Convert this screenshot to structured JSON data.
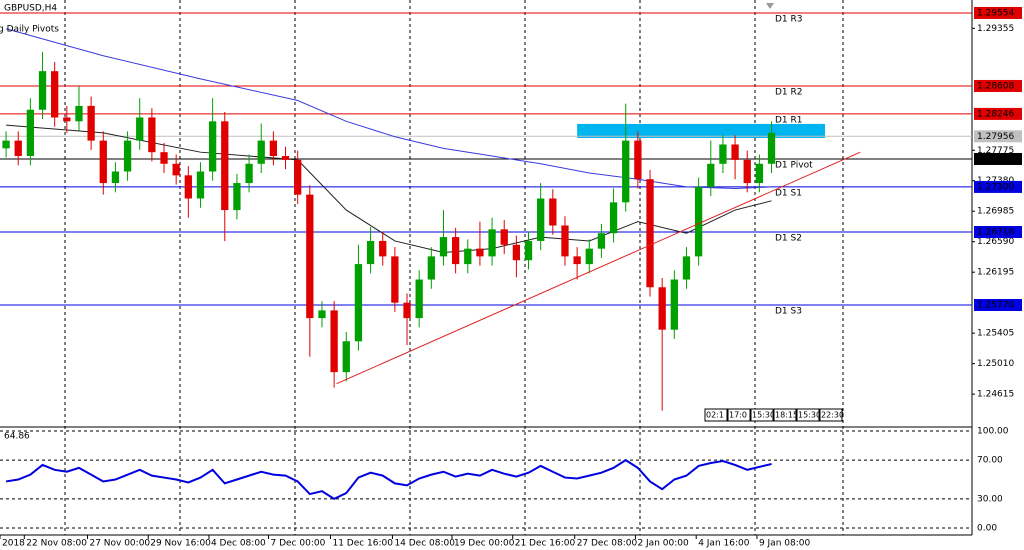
{
  "chart_data": {
    "type": "candlestick",
    "title": "GBPUSD,H4",
    "subtitle": "g Daily Pivots",
    "xlim": [
      -0.5,
      79.5
    ],
    "ylim": [
      1.24215,
      1.29722
    ],
    "up_color": "#00a000",
    "down_color": "#e00000",
    "open": [
      1.278,
      1.279,
      1.277,
      1.283,
      1.288,
      1.282,
      1.2815,
      1.2835,
      1.279,
      1.2735,
      1.275,
      1.279,
      1.282,
      1.2775,
      1.276,
      1.2745,
      1.2715,
      1.275,
      1.2815,
      1.27,
      1.2735,
      1.276,
      1.279,
      1.277,
      1.2765,
      1.272,
      1.256,
      1.257,
      1.249,
      1.253,
      1.263,
      1.266,
      1.264,
      1.258,
      1.256,
      1.261,
      1.264,
      1.2665,
      1.263,
      1.265,
      1.264,
      1.2675,
      1.2655,
      1.2635,
      1.266,
      1.2715,
      1.268,
      1.264,
      1.263,
      1.265,
      1.267,
      1.271,
      1.279,
      1.274,
      1.26,
      1.2545,
      1.261,
      1.264,
      1.273,
      1.276,
      1.2785,
      1.2765,
      1.2735,
      1.276
    ],
    "high": [
      1.2802,
      1.2802,
      1.2845,
      1.2905,
      1.2892,
      1.2835,
      1.286,
      1.2847,
      1.2802,
      1.2762,
      1.2802,
      1.2845,
      1.2832,
      1.2787,
      1.2772,
      1.2757,
      1.2762,
      1.2845,
      1.2827,
      1.2747,
      1.2772,
      1.2812,
      1.2802,
      1.2782,
      1.2777,
      1.2732,
      1.2582,
      1.2582,
      1.2542,
      1.2655,
      1.2678,
      1.2672,
      1.2652,
      1.2592,
      1.2622,
      1.2652,
      1.27,
      1.2677,
      1.2662,
      1.2685,
      1.269,
      1.2687,
      1.2667,
      1.2672,
      1.2735,
      1.2727,
      1.2692,
      1.2652,
      1.2662,
      1.2682,
      1.2728,
      1.2838,
      1.2802,
      1.2752,
      1.2612,
      1.2622,
      1.2652,
      1.2742,
      1.279,
      1.2797,
      1.2797,
      1.2777,
      1.2772,
      1.2815
    ],
    "low": [
      1.2768,
      1.2758,
      1.2758,
      1.2818,
      1.2808,
      1.28,
      1.2803,
      1.2778,
      1.272,
      1.2723,
      1.2738,
      1.2778,
      1.2763,
      1.2748,
      1.2733,
      1.269,
      1.2703,
      1.2738,
      1.266,
      1.2688,
      1.2723,
      1.2748,
      1.2758,
      1.2753,
      1.2708,
      1.251,
      1.2548,
      1.247,
      1.2478,
      1.2518,
      1.2618,
      1.2628,
      1.2568,
      1.2525,
      1.2548,
      1.2598,
      1.2628,
      1.2618,
      1.2618,
      1.2628,
      1.2628,
      1.2643,
      1.2613,
      1.2623,
      1.2648,
      1.2668,
      1.2628,
      1.261,
      1.2618,
      1.2638,
      1.2658,
      1.2698,
      1.2728,
      1.2588,
      1.244,
      1.2533,
      1.2598,
      1.2628,
      1.2718,
      1.2748,
      1.274,
      1.2723,
      1.2723,
      1.2748
    ],
    "close": [
      1.279,
      1.277,
      1.283,
      1.288,
      1.282,
      1.2815,
      1.2835,
      1.279,
      1.2735,
      1.275,
      1.279,
      1.282,
      1.2775,
      1.276,
      1.2745,
      1.2715,
      1.275,
      1.2815,
      1.27,
      1.2735,
      1.276,
      1.279,
      1.277,
      1.2765,
      1.272,
      1.256,
      1.257,
      1.249,
      1.253,
      1.263,
      1.266,
      1.264,
      1.258,
      1.256,
      1.261,
      1.264,
      1.2665,
      1.263,
      1.265,
      1.264,
      1.2675,
      1.2655,
      1.2635,
      1.266,
      1.2715,
      1.268,
      1.264,
      1.263,
      1.265,
      1.267,
      1.271,
      1.279,
      1.274,
      1.26,
      1.2545,
      1.261,
      1.264,
      1.273,
      1.276,
      1.2785,
      1.2765,
      1.2735,
      1.276,
      1.28
    ],
    "ma": [
      {
        "color": "#3a3ae0",
        "x": [
          0,
          8,
          16,
          24,
          28,
          32,
          36,
          40,
          44,
          48,
          52,
          56,
          60,
          63
        ],
        "values": [
          1.2935,
          1.29,
          1.287,
          1.2842,
          1.2815,
          1.2795,
          1.278,
          1.277,
          1.276,
          1.2748,
          1.274,
          1.273,
          1.2728,
          1.273
        ]
      },
      {
        "color": "#202020",
        "x": [
          0,
          8,
          16,
          24,
          28,
          32,
          36,
          40,
          44,
          48,
          52,
          56,
          60,
          63
        ],
        "values": [
          1.281,
          1.28,
          1.2775,
          1.2765,
          1.27,
          1.266,
          1.2645,
          1.265,
          1.2665,
          1.266,
          1.2685,
          1.267,
          1.27,
          1.2712
        ]
      }
    ],
    "trendline": {
      "color": "#e02020",
      "x": [
        27.2,
        70.3
      ],
      "y": [
        1.2475,
        1.2775
      ]
    },
    "zone": {
      "color": "#00b4f0",
      "x": [
        47,
        67.4
      ],
      "y": [
        1.27934,
        1.28116
      ]
    },
    "levels": [
      {
        "name": "D1 R3",
        "value": 1.29554,
        "value_label": "1.29554",
        "color": "#e00000"
      },
      {
        "name": "D1 R2",
        "value": 1.28608,
        "value_label": "1.28608",
        "color": "#e00000"
      },
      {
        "name": "D1 R1",
        "value": 1.28246,
        "value_label": "1.28246",
        "color": "#e00000"
      },
      {
        "name": "D1 Pivot",
        "value": 1.27662,
        "value_label": "1.27662",
        "color": "#000000"
      },
      {
        "name": "D1 S1",
        "value": 1.273,
        "value_label": "1.27300",
        "color": "#0000e0"
      },
      {
        "name": "D1 S2",
        "value": 1.26716,
        "value_label": "1.26716",
        "color": "#0000e0"
      },
      {
        "name": "D1 S3",
        "value": 1.2577,
        "value_label": "1.25770",
        "color": "#0000e0"
      }
    ],
    "current_price": {
      "value": 1.27956,
      "color": "#c0c0c0"
    },
    "yticks": [
      1.29355,
      1.27775,
      {
        "value": 1.2738,
        "label": "1.27380"
      },
      1.26985,
      {
        "value": 1.2659,
        "label": "1.26590"
      },
      1.26195,
      1.25405,
      {
        "value": 1.2501,
        "label": "1.25010"
      },
      1.24615
    ],
    "xticks": [
      {
        "value": -0.5,
        "label": "2018"
      },
      {
        "value": 1.5,
        "label": "22 Nov 08:00"
      },
      {
        "value": 6.7,
        "label": "27 Nov 00:00"
      },
      {
        "value": 11.7,
        "label": "29 Nov 16:00"
      },
      {
        "value": 16.7,
        "label": "4 Dec 08:00"
      },
      {
        "value": 21.6,
        "label": "7 Dec 00:00"
      },
      {
        "value": 26.7,
        "label": "11 Dec 16:00"
      },
      {
        "value": 31.8,
        "label": "14 Dec 08:00"
      },
      {
        "value": 36.7,
        "label": "19 Dec 00:00"
      },
      {
        "value": 41.7,
        "label": "21 Dec 16:00"
      },
      {
        "value": 46.8,
        "label": "27 Dec 08:00"
      },
      {
        "value": 51.8,
        "label": "2 Jan 00:00"
      },
      {
        "value": 56.8,
        "label": "4 Jan 16:00"
      },
      {
        "value": 61.8,
        "label": "9 Jan 08:00"
      }
    ],
    "time_boxes": [
      "02:1",
      "17:0",
      "15:30",
      "18:15",
      "15:30",
      "22:30"
    ],
    "rsi": {
      "label": "64.86",
      "color": "#0000e0",
      "ylim": [
        0,
        100
      ],
      "yticks": [
        {
          "value": 100,
          "label": "100.00"
        },
        {
          "value": 70,
          "label": "70.00"
        },
        {
          "value": 30,
          "label": "30.00"
        },
        {
          "value": 0,
          "label": "0.00"
        }
      ],
      "values": [
        48,
        50,
        55,
        65,
        60,
        58,
        62,
        55,
        48,
        50,
        55,
        60,
        54,
        52,
        50,
        47,
        52,
        60,
        46,
        50,
        54,
        58,
        55,
        54,
        48,
        35,
        38,
        30,
        36,
        52,
        57,
        54,
        46,
        44,
        51,
        55,
        58,
        53,
        56,
        54,
        60,
        56,
        53,
        57,
        64,
        58,
        52,
        51,
        54,
        57,
        62,
        70,
        62,
        48,
        40,
        50,
        54,
        64,
        67,
        69,
        65,
        60,
        63,
        66
      ]
    }
  }
}
